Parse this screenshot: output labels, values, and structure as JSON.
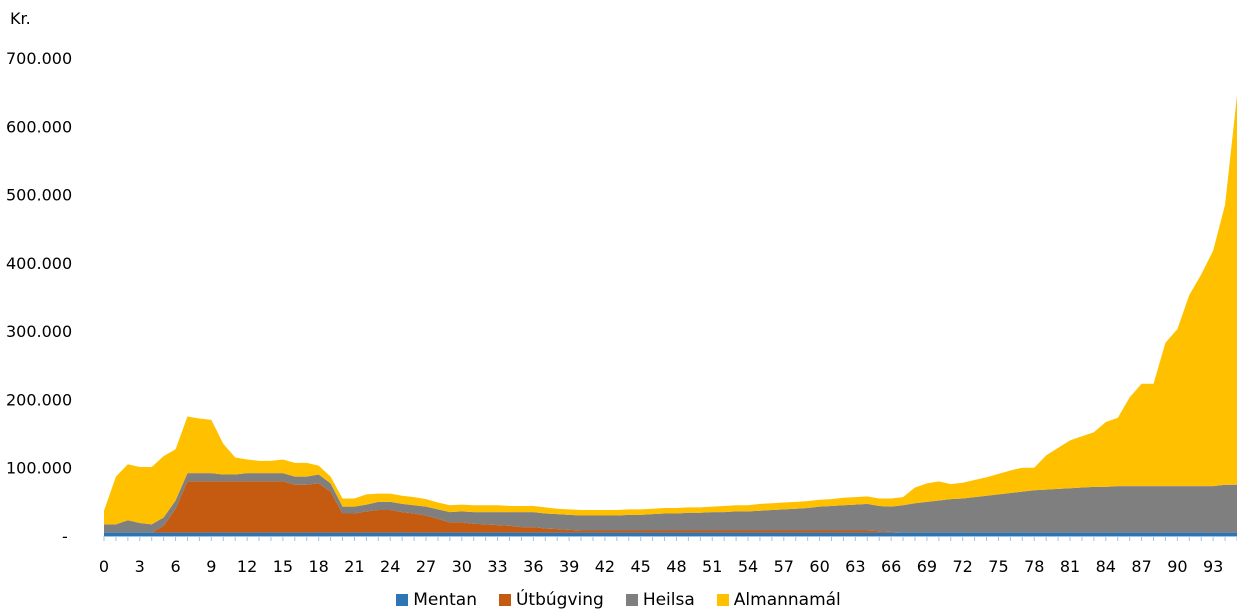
{
  "chart_data": {
    "type": "area",
    "stacked": true,
    "ylabel": "Kr.",
    "ylim": [
      0,
      700000
    ],
    "yticks": [
      0,
      100000,
      200000,
      300000,
      400000,
      500000,
      600000,
      700000
    ],
    "ytick_labels": [
      "-",
      "100.000",
      "200.000",
      "300.000",
      "400.000",
      "500.000",
      "600.000",
      "700.000"
    ],
    "x_range": [
      0,
      95
    ],
    "x_tick_step": 3,
    "x_tick_labels": [
      "0",
      "3",
      "6",
      "9",
      "12",
      "15",
      "18",
      "21",
      "24",
      "27",
      "30",
      "33",
      "36",
      "39",
      "42",
      "45",
      "48",
      "51",
      "54",
      "57",
      "60",
      "63",
      "66",
      "69",
      "72",
      "75",
      "78",
      "81",
      "84",
      "87",
      "90",
      "93"
    ],
    "legend_position": "bottom",
    "series": [
      {
        "name": "Mentan",
        "color": "#2E75B6",
        "values": [
          5000,
          5000,
          5000,
          5000,
          5000,
          5000,
          5000,
          5000,
          5000,
          5000,
          5000,
          5000,
          5000,
          5000,
          5000,
          5000,
          5000,
          5000,
          5000,
          5000,
          5000,
          5000,
          5000,
          5000,
          5000,
          5000,
          5000,
          5000,
          5000,
          5000,
          5000,
          5000,
          5000,
          5000,
          5000,
          5000,
          5000,
          5000,
          5000,
          5000,
          5000,
          5000,
          5000,
          5000,
          5000,
          5000,
          5000,
          5000,
          5000,
          5000,
          5000,
          5000,
          5000,
          5000,
          5000,
          5000,
          5000,
          5000,
          5000,
          5000,
          5000,
          5000,
          5000,
          5000,
          5000,
          5000,
          5000,
          5000,
          5000,
          5000,
          5000,
          5000,
          5000,
          5000,
          5000,
          5000,
          5000,
          5000,
          5000,
          5000,
          5000,
          5000,
          5000,
          5000,
          5000,
          5000,
          5000,
          5000,
          5000,
          5000,
          5000,
          5000,
          5000,
          5000,
          5000,
          5000
        ]
      },
      {
        "name": "Útbúgving",
        "color": "#C55A11",
        "values": [
          0,
          0,
          0,
          0,
          0,
          10000,
          35000,
          75000,
          75000,
          75000,
          75000,
          75000,
          75000,
          75000,
          75000,
          75000,
          70000,
          70000,
          72000,
          60000,
          28000,
          28000,
          31000,
          33000,
          33000,
          30000,
          28000,
          25000,
          20000,
          15000,
          15000,
          13000,
          12000,
          11000,
          10000,
          8000,
          8000,
          6000,
          5000,
          4000,
          3000,
          3000,
          3000,
          3000,
          3000,
          3000,
          3000,
          3000,
          3000,
          3000,
          3000,
          3000,
          3000,
          3000,
          3000,
          3000,
          3000,
          3000,
          3000,
          3000,
          3000,
          3000,
          3000,
          3000,
          3000,
          2000,
          1000,
          0,
          0,
          0,
          0,
          0,
          0,
          0,
          0,
          0,
          0,
          0,
          0,
          0,
          0,
          0,
          0,
          0,
          0,
          0,
          0,
          0,
          0,
          0,
          0,
          0,
          0,
          0,
          0,
          0
        ]
      },
      {
        "name": "Heilsa",
        "color": "#7F7F7F",
        "values": [
          12000,
          12000,
          18000,
          14000,
          12000,
          12000,
          12000,
          12000,
          12000,
          12000,
          10000,
          10000,
          12000,
          12000,
          12000,
          12000,
          12000,
          12000,
          13000,
          12000,
          10000,
          10000,
          10000,
          12000,
          12000,
          12000,
          12000,
          13000,
          14000,
          15000,
          16000,
          17000,
          18000,
          19000,
          20000,
          22000,
          22000,
          22000,
          22000,
          22000,
          22000,
          22000,
          22000,
          22000,
          23000,
          23000,
          24000,
          25000,
          25000,
          26000,
          26000,
          27000,
          27000,
          28000,
          28000,
          29000,
          30000,
          31000,
          32000,
          33000,
          35000,
          36000,
          37000,
          38000,
          39000,
          37000,
          37000,
          40000,
          43000,
          45000,
          47000,
          49000,
          50000,
          52000,
          54000,
          56000,
          58000,
          60000,
          62000,
          63000,
          64000,
          65000,
          66000,
          67000,
          67000,
          68000,
          68000,
          68000,
          68000,
          68000,
          68000,
          68000,
          68000,
          68000,
          70000,
          70000
        ]
      },
      {
        "name": "Almannamál",
        "color": "#FFC000",
        "values": [
          20000,
          70000,
          82000,
          82000,
          84000,
          90000,
          75000,
          83000,
          80000,
          78000,
          45000,
          25000,
          20000,
          18000,
          18000,
          20000,
          20000,
          20000,
          13000,
          10000,
          12000,
          12000,
          15000,
          12000,
          12000,
          12000,
          12000,
          11000,
          10000,
          10000,
          10000,
          10000,
          10000,
          10000,
          9000,
          9000,
          9000,
          9000,
          8000,
          8000,
          8000,
          8000,
          8000,
          8000,
          8000,
          8000,
          8000,
          8000,
          8000,
          8000,
          8000,
          8000,
          9000,
          9000,
          9000,
          10000,
          10000,
          10000,
          10000,
          10000,
          10000,
          10000,
          11000,
          11000,
          11000,
          11000,
          12000,
          12000,
          23000,
          27000,
          28000,
          22000,
          23000,
          25000,
          27000,
          30000,
          33000,
          35000,
          33000,
          50000,
          60000,
          70000,
          75000,
          80000,
          95000,
          100000,
          130000,
          150000,
          150000,
          210000,
          230000,
          280000,
          310000,
          345000,
          410000,
          570000
        ]
      }
    ]
  }
}
